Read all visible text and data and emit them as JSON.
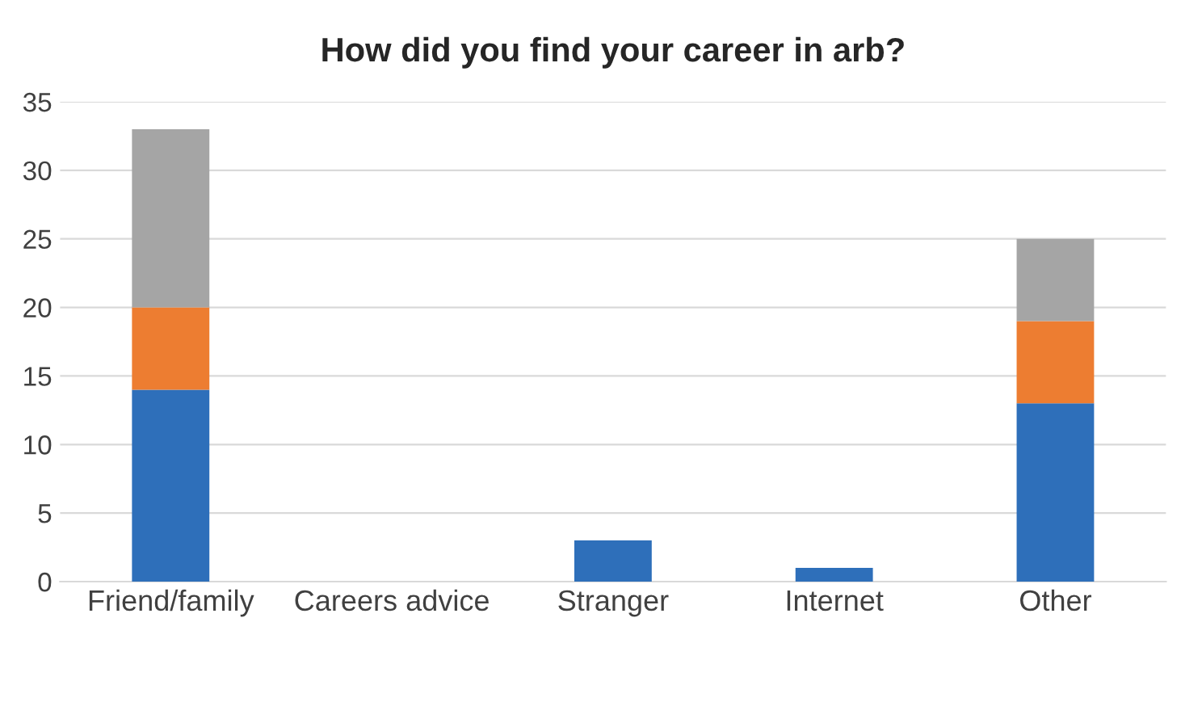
{
  "chart_data": {
    "type": "bar",
    "title": "How did you find your career in arb?",
    "categories": [
      "Friend/family",
      "Careers advice",
      "Stranger",
      "Internet",
      "Other"
    ],
    "series": [
      {
        "color": "#2e6fba",
        "values": [
          14,
          0,
          3,
          1,
          13
        ]
      },
      {
        "color": "#ed7d31",
        "values": [
          6,
          null,
          null,
          null,
          6
        ]
      },
      {
        "color": "#a5a5a5",
        "values": [
          13,
          null,
          null,
          null,
          6
        ]
      }
    ],
    "stacked": true,
    "ylim": [
      0,
      35
    ],
    "yticks": [
      0,
      5,
      10,
      15,
      20,
      25,
      30,
      35
    ],
    "grid": "y"
  }
}
